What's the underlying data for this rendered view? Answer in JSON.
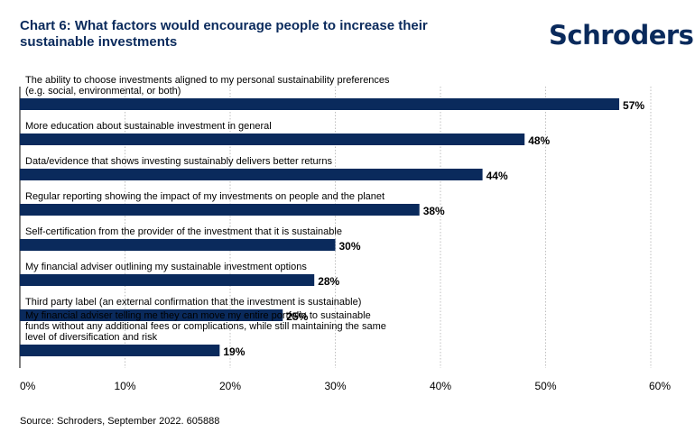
{
  "title": "Chart 6: What factors would encourage people to increase their sustainable investments",
  "brand": "Schroders",
  "source": "Source: Schroders, September 2022. 605888",
  "colors": {
    "bar": "#0a2a5c",
    "title": "#0a2a5c",
    "grid": "#bfbfbf"
  },
  "chart_data": {
    "type": "bar",
    "orientation": "horizontal",
    "categories": [
      "The ability to choose investments aligned to my personal sustainability preferences (e.g. social, environmental, or both)",
      "More education about sustainable investment in general",
      "Data/evidence that shows investing sustainably delivers better returns",
      "Regular reporting showing the impact of my investments on people and the planet",
      "Self-certification from the provider of the investment that it is sustainable",
      "My financial adviser outlining my sustainable investment options",
      "Third party label (an external confirmation that the investment is sustainable)",
      "My financial adviser telling me they can move my entire portfolio to sustainable funds without any additional fees or complications, while still maintaining the same level of diversification and risk"
    ],
    "values": [
      57,
      48,
      44,
      38,
      30,
      28,
      25,
      19
    ],
    "value_labels": [
      "57%",
      "48%",
      "44%",
      "38%",
      "30%",
      "28%",
      "25%",
      "19%"
    ],
    "xlim": [
      0,
      60
    ],
    "xticks": [
      0,
      10,
      20,
      30,
      40,
      50,
      60
    ],
    "xtick_labels": [
      "0%",
      "10%",
      "20%",
      "30%",
      "40%",
      "50%",
      "60%"
    ],
    "grid": true
  }
}
